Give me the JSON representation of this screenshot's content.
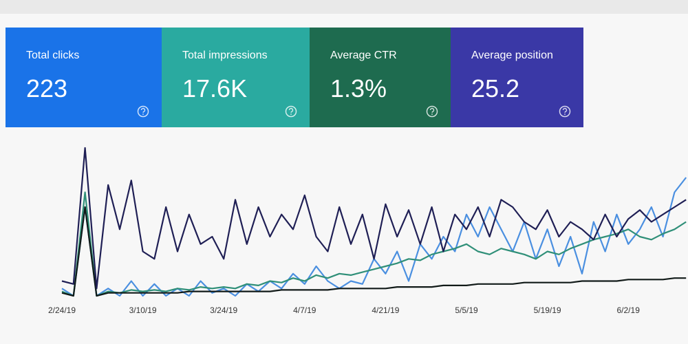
{
  "cards": [
    {
      "label": "Total clicks",
      "value": "223",
      "color": "#1a73e8"
    },
    {
      "label": "Total impressions",
      "value": "17.6K",
      "color": "#2aaaa0"
    },
    {
      "label": "Average CTR",
      "value": "1.3%",
      "color": "#1e6b4f"
    },
    {
      "label": "Average position",
      "value": "25.2",
      "color": "#3a38a6"
    }
  ],
  "chart_data": {
    "type": "line",
    "categories": [
      "2/24/19",
      null,
      null,
      null,
      null,
      null,
      null,
      "3/10/19",
      null,
      null,
      null,
      null,
      null,
      null,
      "3/24/19",
      null,
      null,
      null,
      null,
      null,
      null,
      "4/7/19",
      null,
      null,
      null,
      null,
      null,
      null,
      "4/21/19",
      null,
      null,
      null,
      null,
      null,
      null,
      "5/5/19",
      null,
      null,
      null,
      null,
      null,
      null,
      "5/19/19",
      null,
      null,
      null,
      null,
      null,
      null,
      "6/2/19",
      null,
      null,
      null,
      null,
      null
    ],
    "ylim": [
      0,
      100
    ],
    "series": [
      {
        "name": "Total clicks",
        "color": "#4a8fe0",
        "values": [
          5,
          0,
          60,
          0,
          5,
          0,
          10,
          0,
          8,
          0,
          5,
          0,
          10,
          2,
          5,
          0,
          8,
          3,
          10,
          5,
          15,
          8,
          20,
          10,
          5,
          10,
          8,
          25,
          15,
          30,
          10,
          35,
          25,
          40,
          30,
          55,
          40,
          60,
          45,
          30,
          50,
          25,
          45,
          20,
          40,
          15,
          50,
          30,
          55,
          35,
          45,
          60,
          40,
          70,
          80
        ]
      },
      {
        "name": "Total impressions",
        "color": "#2f8f78",
        "values": [
          3,
          0,
          70,
          0,
          3,
          2,
          4,
          3,
          4,
          3,
          5,
          4,
          6,
          5,
          6,
          5,
          8,
          7,
          10,
          9,
          12,
          10,
          14,
          12,
          15,
          14,
          16,
          18,
          20,
          22,
          25,
          24,
          28,
          30,
          32,
          35,
          30,
          28,
          32,
          30,
          28,
          25,
          30,
          28,
          32,
          35,
          38,
          40,
          42,
          45,
          40,
          38,
          42,
          45,
          50
        ]
      },
      {
        "name": "Average CTR",
        "color": "#111a18",
        "values": [
          2,
          0,
          60,
          0,
          2,
          2,
          2,
          2,
          2,
          2,
          2,
          3,
          3,
          3,
          3,
          3,
          3,
          3,
          3,
          4,
          4,
          4,
          4,
          4,
          5,
          5,
          5,
          5,
          5,
          6,
          6,
          6,
          6,
          7,
          7,
          7,
          8,
          8,
          8,
          8,
          9,
          9,
          9,
          9,
          9,
          10,
          10,
          10,
          10,
          11,
          11,
          11,
          11,
          12,
          12
        ]
      },
      {
        "name": "Average position",
        "color": "#1f1f55",
        "values": [
          10,
          8,
          100,
          5,
          75,
          45,
          78,
          30,
          25,
          60,
          30,
          55,
          35,
          40,
          25,
          65,
          35,
          60,
          40,
          55,
          45,
          68,
          40,
          30,
          60,
          35,
          55,
          25,
          62,
          40,
          58,
          35,
          60,
          30,
          55,
          45,
          60,
          40,
          65,
          60,
          50,
          45,
          58,
          40,
          50,
          45,
          38,
          55,
          40,
          52,
          58,
          50,
          55,
          60,
          65
        ]
      }
    ]
  }
}
